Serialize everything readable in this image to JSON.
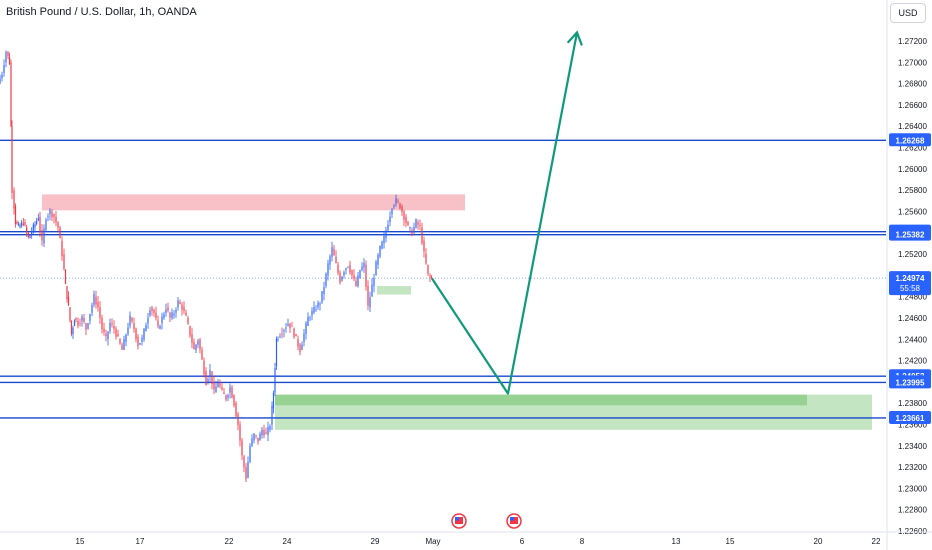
{
  "header": {
    "symbol_title": "British Pound / U.S. Dollar, 1h, OANDA",
    "currency": "USD"
  },
  "colors": {
    "up": "#2962ff",
    "down": "#f23645",
    "level_line": "#1848cc",
    "resistance_zone": "#f7b5bd",
    "support_zone": "#b9e0b6",
    "support_zone_inner": "#8fcf8b",
    "arrow": "#0f9a7c",
    "price_label_bg": "#2962ff"
  },
  "chart_data": {
    "type": "candlestick",
    "title": "British Pound / U.S. Dollar, 1h, OANDA",
    "ylim": [
      1.226,
      1.273
    ],
    "y_ticks": [
      "1.22600",
      "1.22800",
      "1.23000",
      "1.23200",
      "1.23400",
      "1.23600",
      "1.23800",
      "1.24000",
      "1.24200",
      "1.24400",
      "1.24600",
      "1.24800",
      "1.25000",
      "1.25200",
      "1.25400",
      "1.25600",
      "1.25800",
      "1.26000",
      "1.26200",
      "1.26400",
      "1.26600",
      "1.26800",
      "1.27000",
      "1.27200"
    ],
    "x_ticks": [
      "15",
      "17",
      "22",
      "24",
      "29",
      "May",
      "6",
      "8",
      "13",
      "15",
      "20",
      "22"
    ],
    "price_path": [
      [
        0,
        1.268
      ],
      [
        4,
        1.269
      ],
      [
        8,
        1.271
      ],
      [
        11,
        1.27
      ],
      [
        12,
        1.264
      ],
      [
        14,
        1.258
      ],
      [
        17,
        1.255
      ],
      [
        20,
        1.2545
      ],
      [
        25,
        1.255
      ],
      [
        30,
        1.2535
      ],
      [
        35,
        1.2545
      ],
      [
        40,
        1.2555
      ],
      [
        44,
        1.253
      ],
      [
        48,
        1.2555
      ],
      [
        52,
        1.256
      ],
      [
        56,
        1.2555
      ],
      [
        60,
        1.2545
      ],
      [
        64,
        1.252
      ],
      [
        67,
        1.249
      ],
      [
        70,
        1.247
      ],
      [
        73,
        1.2445
      ],
      [
        76,
        1.246
      ],
      [
        80,
        1.2455
      ],
      [
        84,
        1.246
      ],
      [
        88,
        1.245
      ],
      [
        92,
        1.2465
      ],
      [
        96,
        1.248
      ],
      [
        100,
        1.247
      ],
      [
        104,
        1.245
      ],
      [
        108,
        1.244
      ],
      [
        112,
        1.2455
      ],
      [
        116,
        1.245
      ],
      [
        120,
        1.244
      ],
      [
        124,
        1.243
      ],
      [
        128,
        1.2445
      ],
      [
        132,
        1.246
      ],
      [
        136,
        1.245
      ],
      [
        140,
        1.2435
      ],
      [
        144,
        1.244
      ],
      [
        148,
        1.2455
      ],
      [
        152,
        1.247
      ],
      [
        156,
        1.2465
      ],
      [
        160,
        1.245
      ],
      [
        164,
        1.246
      ],
      [
        168,
        1.247
      ],
      [
        172,
        1.246
      ],
      [
        176,
        1.2465
      ],
      [
        180,
        1.2475
      ],
      [
        184,
        1.247
      ],
      [
        188,
        1.246
      ],
      [
        192,
        1.2445
      ],
      [
        196,
        1.243
      ],
      [
        200,
        1.244
      ],
      [
        204,
        1.242
      ],
      [
        208,
        1.24
      ],
      [
        212,
        1.241
      ],
      [
        216,
        1.239
      ],
      [
        220,
        1.24
      ],
      [
        224,
        1.239
      ],
      [
        228,
        1.2385
      ],
      [
        232,
        1.2395
      ],
      [
        236,
        1.238
      ],
      [
        240,
        1.236
      ],
      [
        244,
        1.233
      ],
      [
        248,
        1.231
      ],
      [
        252,
        1.234
      ],
      [
        256,
        1.235
      ],
      [
        260,
        1.2345
      ],
      [
        264,
        1.2355
      ],
      [
        268,
        1.235
      ],
      [
        272,
        1.236
      ],
      [
        275,
        1.239
      ],
      [
        278,
        1.244
      ],
      [
        282,
        1.2445
      ],
      [
        286,
        1.245
      ],
      [
        290,
        1.2455
      ],
      [
        294,
        1.245
      ],
      [
        298,
        1.244
      ],
      [
        302,
        1.243
      ],
      [
        306,
        1.2445
      ],
      [
        310,
        1.246
      ],
      [
        314,
        1.2465
      ],
      [
        318,
        1.247
      ],
      [
        322,
        1.2475
      ],
      [
        326,
        1.249
      ],
      [
        330,
        1.251
      ],
      [
        334,
        1.2525
      ],
      [
        338,
        1.251
      ],
      [
        342,
        1.2495
      ],
      [
        346,
        1.2505
      ],
      [
        350,
        1.251
      ],
      [
        354,
        1.25
      ],
      [
        358,
        1.249
      ],
      [
        362,
        1.2505
      ],
      [
        366,
        1.251
      ],
      [
        370,
        1.247
      ],
      [
        374,
        1.249
      ],
      [
        378,
        1.251
      ],
      [
        382,
        1.2525
      ],
      [
        386,
        1.2535
      ],
      [
        390,
        1.255
      ],
      [
        394,
        1.2565
      ],
      [
        398,
        1.257
      ],
      [
        402,
        1.2565
      ],
      [
        406,
        1.2555
      ],
      [
        410,
        1.2545
      ],
      [
        414,
        1.254
      ],
      [
        418,
        1.255
      ],
      [
        422,
        1.2545
      ],
      [
        426,
        1.252
      ],
      [
        430,
        1.25
      ],
      [
        433,
        1.2497
      ]
    ],
    "horizontal_levels": [
      {
        "price": 1.26268,
        "label": "1.26268"
      },
      {
        "price": 1.2541,
        "label": "1.25410"
      },
      {
        "price": 1.25382,
        "label": "1.25382"
      },
      {
        "price": 1.24053,
        "label": "1.24053"
      },
      {
        "price": 1.23995,
        "label": "1.23995"
      },
      {
        "price": 1.23661,
        "label": "1.23661"
      }
    ],
    "last_price": {
      "value": 1.24974,
      "label": "1.24974",
      "countdown": "55:58"
    },
    "zones": [
      {
        "role": "resistance",
        "x_from": 42,
        "x_to": 465,
        "y_top": 1.2576,
        "y_bottom": 1.2561
      },
      {
        "role": "minor",
        "x_from": 377,
        "x_to": 411,
        "y_top": 1.249,
        "y_bottom": 1.2482
      },
      {
        "role": "support",
        "x_from": 275,
        "x_to": 872,
        "y_top": 1.2388,
        "y_bottom": 1.2355
      },
      {
        "role": "support-inner",
        "x_from": 275,
        "x_to": 807,
        "y_top": 1.2388,
        "y_bottom": 1.2378
      }
    ],
    "projection": {
      "points": [
        [
          432,
          1.2497
        ],
        [
          508,
          1.2389
        ],
        [
          577,
          1.2728
        ]
      ]
    }
  }
}
